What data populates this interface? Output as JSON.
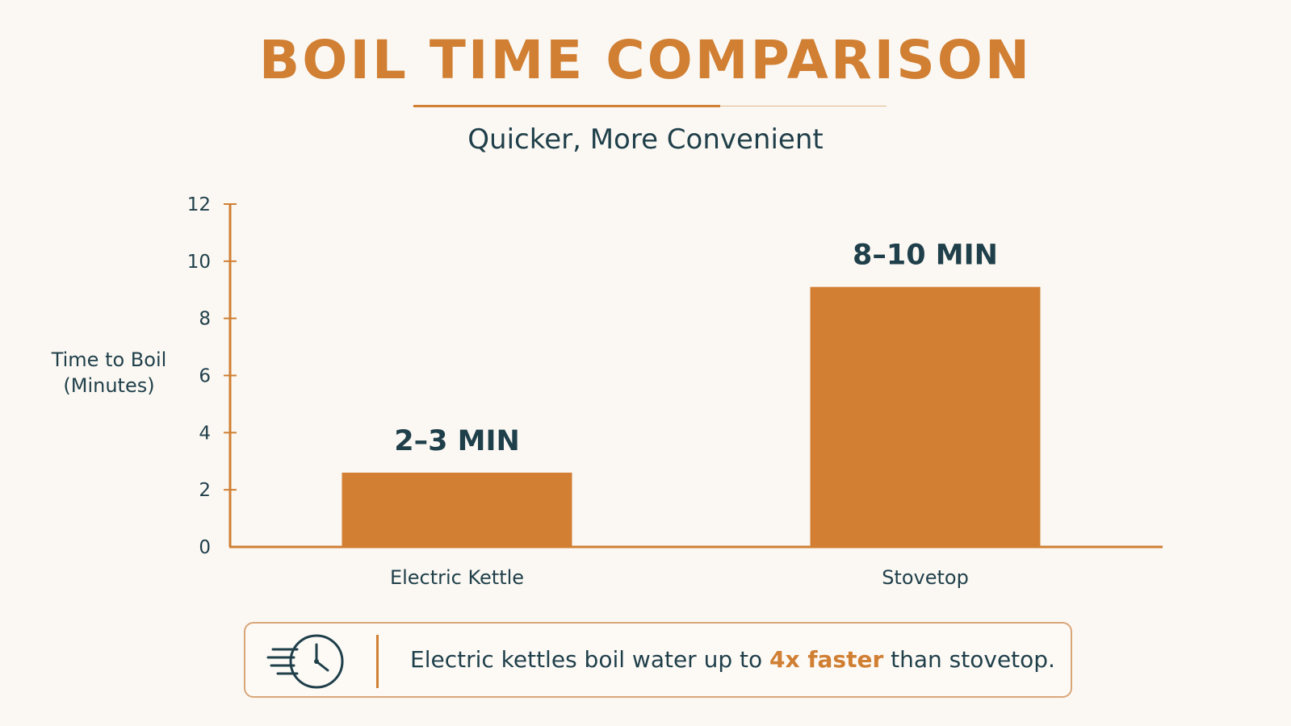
{
  "colors": {
    "accent": "#d07f33",
    "bar": "#d37f33",
    "text": "#1f3f4a",
    "background": "#fbf8f3"
  },
  "header": {
    "title": "BOIL TIME COMPARISON",
    "subtitle": "Quicker, More Convenient"
  },
  "chart_data": {
    "type": "bar",
    "title": "BOIL TIME COMPARISON",
    "subtitle": "Quicker, More Convenient",
    "xlabel": "",
    "ylabel": "Time to Boil (Minutes)",
    "ylabel_lines": [
      "Time to Boil",
      "(Minutes)"
    ],
    "categories": [
      "Electric Kettle",
      "Stovetop"
    ],
    "values": [
      2.6,
      9.1
    ],
    "data_labels": [
      "2–3 MIN",
      "8–10 MIN"
    ],
    "ylim": [
      0,
      12
    ],
    "yticks": [
      0,
      2,
      4,
      6,
      8,
      10,
      12
    ],
    "grid": false,
    "legend": "none"
  },
  "callout": {
    "icon": "clock-speed-icon",
    "text_before": "Electric kettles boil water up to ",
    "highlight": "4x faster",
    "text_after": " than stovetop."
  }
}
